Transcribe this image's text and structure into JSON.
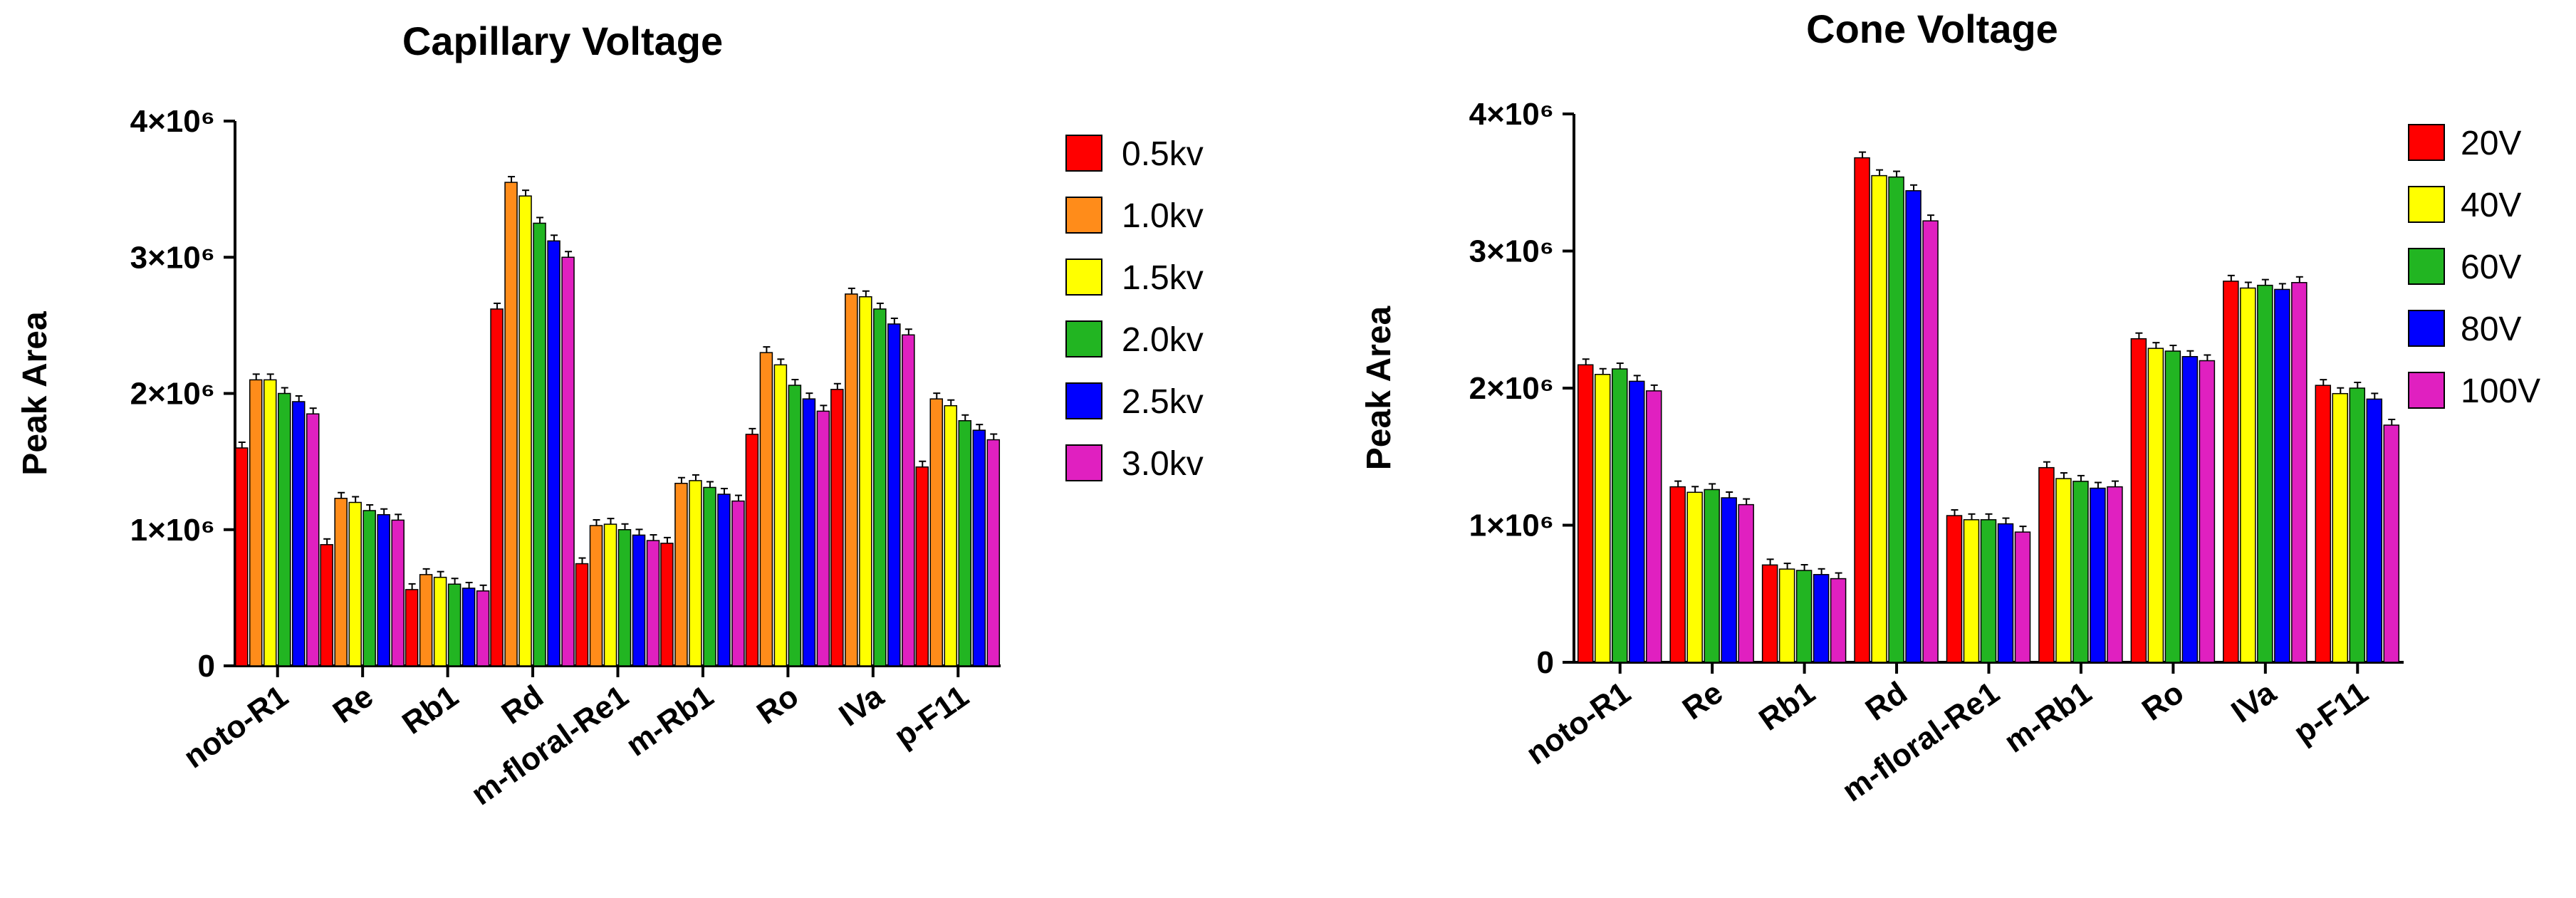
{
  "chart_data": [
    {
      "type": "bar",
      "title": "Capillary Voltage",
      "xlabel": "",
      "ylabel": "Peak Area",
      "ylim": [
        0,
        4000000
      ],
      "yticks": [
        0,
        1000000,
        2000000,
        3000000,
        4000000
      ],
      "ytick_labels": [
        "0",
        "1×10⁶",
        "2×10⁶",
        "3×10⁶",
        "4×10⁶"
      ],
      "legend_position": "right",
      "categories": [
        "noto-R1",
        "Re",
        "Rb1",
        "Rd",
        "m-floral-Re1",
        "m-Rb1",
        "Ro",
        "IVa",
        "p-F11"
      ],
      "series": [
        {
          "name": "0.5kv",
          "color": "#FF0000",
          "values": [
            1600000,
            890000,
            560000,
            2620000,
            750000,
            900000,
            1700000,
            2030000,
            1460000
          ]
        },
        {
          "name": "1.0kv",
          "color": "#FF8C1A",
          "values": [
            2100000,
            1230000,
            670000,
            3550000,
            1030000,
            1340000,
            2300000,
            2730000,
            1960000
          ]
        },
        {
          "name": "1.5kv",
          "color": "#FFFF00",
          "values": [
            2100000,
            1200000,
            650000,
            3450000,
            1040000,
            1360000,
            2210000,
            2710000,
            1910000
          ]
        },
        {
          "name": "2.0kv",
          "color": "#22B522",
          "values": [
            2000000,
            1140000,
            600000,
            3250000,
            1000000,
            1310000,
            2060000,
            2620000,
            1800000
          ]
        },
        {
          "name": "2.5kv",
          "color": "#0000FF",
          "values": [
            1940000,
            1110000,
            570000,
            3120000,
            960000,
            1260000,
            1960000,
            2510000,
            1730000
          ]
        },
        {
          "name": "3.0kv",
          "color": "#E020C0",
          "values": [
            1850000,
            1070000,
            550000,
            3000000,
            920000,
            1210000,
            1870000,
            2430000,
            1660000
          ]
        }
      ]
    },
    {
      "type": "bar",
      "title": "Cone Voltage",
      "xlabel": "",
      "ylabel": "Peak Area",
      "ylim": [
        0,
        4000000
      ],
      "yticks": [
        0,
        1000000,
        2000000,
        3000000,
        4000000
      ],
      "ytick_labels": [
        "0",
        "1×10⁶",
        "2×10⁶",
        "3×10⁶",
        "4×10⁶"
      ],
      "legend_position": "right",
      "categories": [
        "noto-R1",
        "Re",
        "Rb1",
        "Rd",
        "m-floral-Re1",
        "m-Rb1",
        "Ro",
        "IVa",
        "p-F11"
      ],
      "series": [
        {
          "name": "20V",
          "color": "#FF0000",
          "values": [
            2170000,
            1280000,
            710000,
            3680000,
            1070000,
            1420000,
            2360000,
            2780000,
            2020000
          ]
        },
        {
          "name": "40V",
          "color": "#FFFF00",
          "values": [
            2100000,
            1240000,
            680000,
            3550000,
            1040000,
            1340000,
            2290000,
            2730000,
            1960000
          ]
        },
        {
          "name": "60V",
          "color": "#22B522",
          "values": [
            2140000,
            1260000,
            670000,
            3540000,
            1040000,
            1320000,
            2270000,
            2750000,
            2000000
          ]
        },
        {
          "name": "80V",
          "color": "#0000FF",
          "values": [
            2050000,
            1200000,
            640000,
            3440000,
            1010000,
            1270000,
            2230000,
            2720000,
            1920000
          ]
        },
        {
          "name": "100V",
          "color": "#E020C0",
          "values": [
            1980000,
            1150000,
            610000,
            3220000,
            950000,
            1280000,
            2200000,
            2770000,
            1730000
          ]
        }
      ]
    }
  ]
}
